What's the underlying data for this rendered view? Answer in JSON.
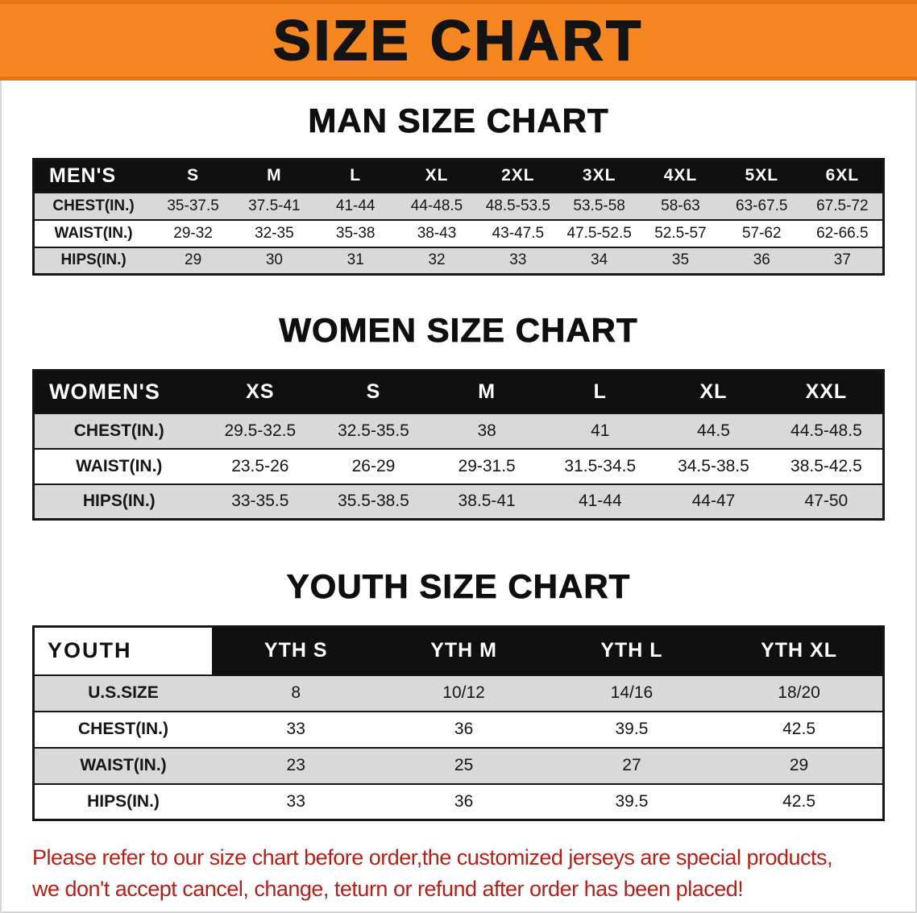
{
  "banner": {
    "title": "SIZE CHART"
  },
  "men": {
    "heading": "MAN SIZE CHART",
    "header": [
      "MEN'S",
      "S",
      "M",
      "L",
      "XL",
      "2XL",
      "3XL",
      "4XL",
      "5XL",
      "6XL"
    ],
    "rows": [
      [
        "CHEST(IN.)",
        "35-37.5",
        "37.5-41",
        "41-44",
        "44-48.5",
        "48.5-53.5",
        "53.5-58",
        "58-63",
        "63-67.5",
        "67.5-72"
      ],
      [
        "WAIST(IN.)",
        "29-32",
        "32-35",
        "35-38",
        "38-43",
        "43-47.5",
        "47.5-52.5",
        "52.5-57",
        "57-62",
        "62-66.5"
      ],
      [
        "HIPS(IN.)",
        "29",
        "30",
        "31",
        "32",
        "33",
        "34",
        "35",
        "36",
        "37"
      ]
    ]
  },
  "women": {
    "heading": "WOMEN SIZE CHART",
    "header": [
      "WOMEN'S",
      "XS",
      "S",
      "M",
      "L",
      "XL",
      "XXL"
    ],
    "rows": [
      [
        "CHEST(IN.)",
        "29.5-32.5",
        "32.5-35.5",
        "38",
        "41",
        "44.5",
        "44.5-48.5"
      ],
      [
        "WAIST(IN.)",
        "23.5-26",
        "26-29",
        "29-31.5",
        "31.5-34.5",
        "34.5-38.5",
        "38.5-42.5"
      ],
      [
        "HIPS(IN.)",
        "33-35.5",
        "35.5-38.5",
        "38.5-41",
        "41-44",
        "44-47",
        "47-50"
      ]
    ]
  },
  "youth": {
    "heading": "YOUTH SIZE CHART",
    "header": [
      "YOUTH",
      "YTH S",
      "YTH M",
      "YTH L",
      "YTH XL"
    ],
    "rows": [
      [
        "U.S.SIZE",
        "8",
        "10/12",
        "14/16",
        "18/20"
      ],
      [
        "CHEST(IN.)",
        "33",
        "36",
        "39.5",
        "42.5"
      ],
      [
        "WAIST(IN.)",
        "23",
        "25",
        "27",
        "29"
      ],
      [
        "HIPS(IN.)",
        "33",
        "36",
        "39.5",
        "42.5"
      ]
    ]
  },
  "note": {
    "line1": "Please refer to our size chart before order,the customized jerseys are special products,",
    "line2": "we don't accept cancel, change, teturn or refund after order has been placed!"
  },
  "colors": {
    "banner_bg": "#f6861f",
    "table_header_bg": "#101010",
    "row_alt_bg": "#d9d9d9",
    "note_text": "#b2221a"
  }
}
